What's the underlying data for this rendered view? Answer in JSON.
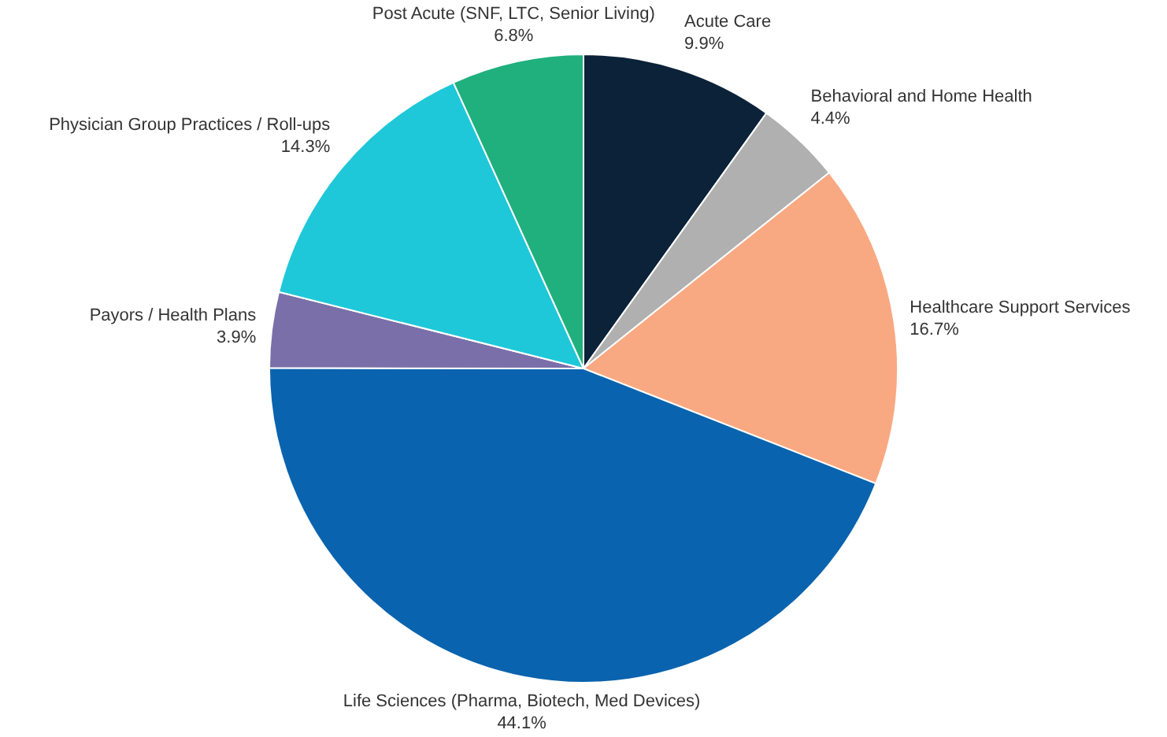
{
  "chart_data": {
    "type": "pie",
    "categories": [
      "Acute Care",
      "Behavioral and Home Health",
      "Healthcare Support Services",
      "Life Sciences (Pharma, Biotech, Med Devices)",
      "Payors / Health Plans",
      "Physician Group Practices / Roll-ups",
      "Post Acute (SNF, LTC, Senior Living)"
    ],
    "values": [
      9.9,
      4.4,
      16.7,
      44.1,
      3.9,
      14.3,
      6.8
    ],
    "value_labels": [
      "9.9%",
      "4.4%",
      "16.7%",
      "44.1%",
      "3.9%",
      "14.3%",
      "6.8%"
    ],
    "colors": [
      "#0b2239",
      "#b0b0b0",
      "#f9a982",
      "#0a63ae",
      "#7a6fa8",
      "#1ec8d8",
      "#1fb07e"
    ],
    "legend": false
  }
}
